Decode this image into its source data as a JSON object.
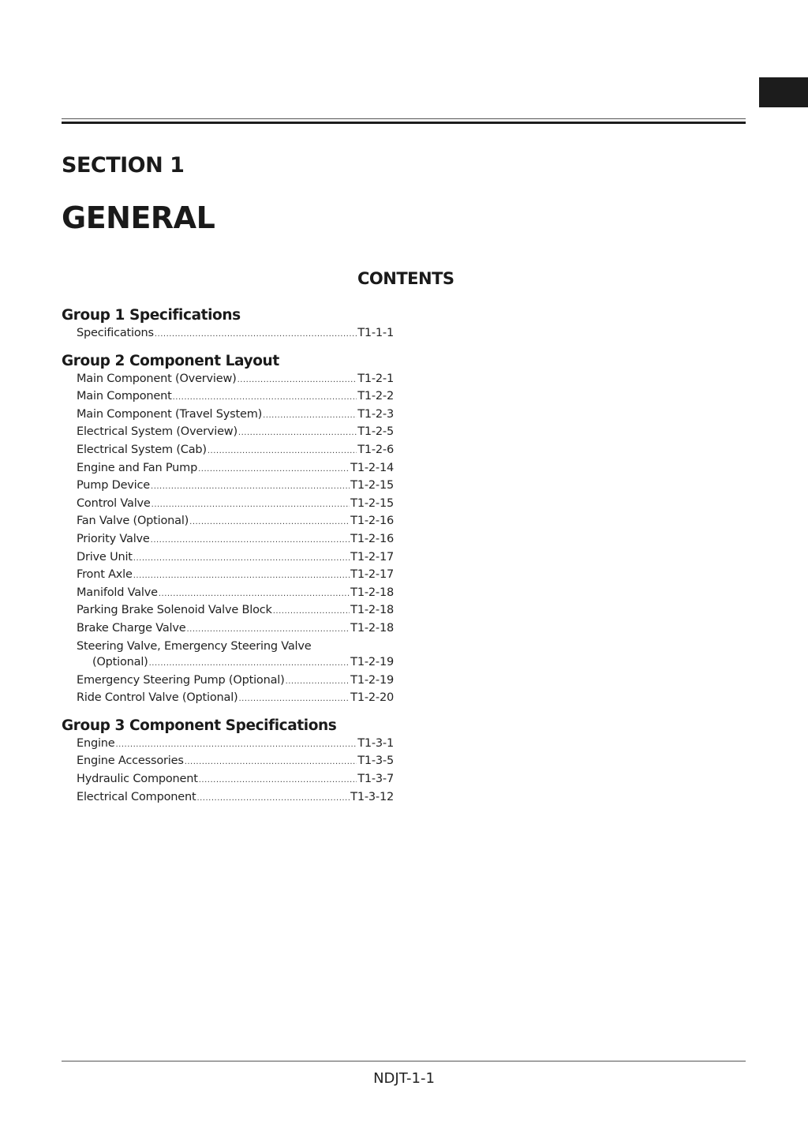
{
  "header": {
    "section": "SECTION 1",
    "title": "GENERAL"
  },
  "contents_title": "CONTENTS",
  "groups": [
    {
      "title": "Group 1 Specifications",
      "items": [
        {
          "label": "Specifications",
          "page": "T1-1-1"
        }
      ]
    },
    {
      "title": "Group 2 Component Layout",
      "items": [
        {
          "label": "Main Component (Overview)",
          "page": "T1-2-1"
        },
        {
          "label": "Main Component",
          "page": "T1-2-2"
        },
        {
          "label": "Main Component (Travel System)",
          "page": "T1-2-3"
        },
        {
          "label": "Electrical System (Overview)",
          "page": "T1-2-5"
        },
        {
          "label": "Electrical System (Cab)",
          "page": "T1-2-6"
        },
        {
          "label": "Engine and Fan Pump",
          "page": "T1-2-14"
        },
        {
          "label": "Pump Device",
          "page": "T1-2-15"
        },
        {
          "label": "Control Valve",
          "page": "T1-2-15"
        },
        {
          "label": "Fan Valve (Optional)",
          "page": "T1-2-16"
        },
        {
          "label": "Priority Valve",
          "page": "T1-2-16"
        },
        {
          "label": "Drive Unit",
          "page": "T1-2-17"
        },
        {
          "label": "Front Axle",
          "page": "T1-2-17"
        },
        {
          "label": "Manifold Valve",
          "page": "T1-2-18"
        },
        {
          "label": "Parking Brake Solenoid Valve Block",
          "page": "T1-2-18"
        },
        {
          "label": "Brake Charge Valve",
          "page": "T1-2-18"
        },
        {
          "label": "Steering Valve, Emergency Steering Valve",
          "continuation": "(Optional)",
          "page": "T1-2-19"
        },
        {
          "label": "Emergency Steering Pump (Optional)",
          "page": "T1-2-19"
        },
        {
          "label": "Ride Control Valve (Optional)",
          "page": "T1-2-20"
        }
      ]
    },
    {
      "title": "Group 3 Component Specifications",
      "items": [
        {
          "label": "Engine",
          "page": "T1-3-1"
        },
        {
          "label": "Engine Accessories",
          "page": "T1-3-5"
        },
        {
          "label": "Hydraulic Component",
          "page": "T1-3-7"
        },
        {
          "label": "Electrical Component",
          "page": "T1-3-12"
        }
      ]
    }
  ],
  "footer": {
    "page_id": "NDJT-1-1"
  }
}
